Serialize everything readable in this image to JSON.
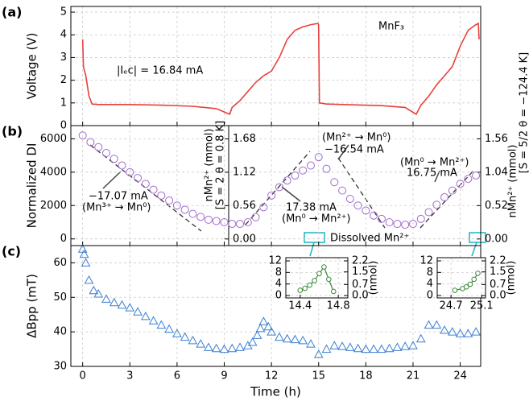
{
  "chart_data": [
    {
      "type": "line",
      "panel_label": "(a)",
      "y_label": "Voltage (V)",
      "annotations": [
        "MnF₃",
        "|Iₑc| = 16.84 mA"
      ],
      "color": "#e8413c",
      "grid": true,
      "xlim": [
        -0.75,
        25.3
      ],
      "ylim": [
        0,
        5.25
      ],
      "yticks": [
        0,
        1,
        2,
        3,
        4,
        5
      ],
      "x": [
        0,
        0.05,
        0.2,
        0.4,
        0.6,
        1,
        3,
        5,
        7,
        8.5,
        9.35,
        9.5,
        10,
        10.5,
        11,
        11.5,
        12,
        12.5,
        13,
        13.5,
        14,
        14.5,
        14.95,
        15.0,
        15.05,
        15.5,
        17,
        19,
        20.5,
        21.2,
        21.5,
        22,
        22.5,
        23,
        23.5,
        24,
        24.5,
        25,
        25.15,
        25.2
      ],
      "values": [
        3.8,
        2.6,
        2.2,
        1.3,
        0.95,
        0.93,
        0.93,
        0.9,
        0.85,
        0.75,
        0.5,
        0.8,
        1.1,
        1.5,
        1.9,
        2.2,
        2.4,
        3.0,
        3.8,
        4.2,
        4.35,
        4.45,
        4.5,
        4.45,
        1.0,
        0.95,
        0.92,
        0.88,
        0.8,
        0.5,
        0.9,
        1.3,
        1.8,
        2.2,
        2.6,
        3.5,
        4.2,
        4.45,
        4.5,
        3.8
      ]
    },
    {
      "type": "scatter",
      "marker": "circle",
      "panel_label": "(b)",
      "y_label": "Normalized DI",
      "y2_label": [
        "nMn²⁺ (mmol)",
        "[S = 2 θ = 0.8 K]"
      ],
      "y3_label": [
        "nMn²⁺ (mmol)",
        "[S = 5/2 θ = −124.4 K]"
      ],
      "annotations": [
        "−17.07 mA",
        "(Mn³⁺ → Mn⁰)",
        "17.38 mA",
        "(Mn⁰ → Mn²⁺)",
        "(Mn²⁺ → Mn⁰)",
        "−16.54 mA",
        "(Mn⁰ → Mn²⁺)",
        "16.75 mA"
      ],
      "color": "#a06ccc",
      "grid": true,
      "xlim": [
        -0.75,
        25.3
      ],
      "ylim": [
        -400,
        6790
      ],
      "yticks": [
        0,
        2000,
        4000,
        6000
      ],
      "y2lim": [
        -0.111,
        1.903
      ],
      "y2ticks": [
        {
          "value": 0,
          "label": "0.00"
        },
        0.56,
        1.12,
        1.68
      ],
      "y3lim": [
        -0.103,
        1.766
      ],
      "y3ticks": [
        {
          "value": 0,
          "label": "0.00"
        },
        0.52,
        1.04,
        1.56
      ],
      "x": [
        0,
        0.5,
        1,
        1.5,
        2,
        2.5,
        3,
        3.5,
        4,
        4.5,
        5,
        5.5,
        6,
        6.5,
        7,
        7.5,
        8,
        8.5,
        9,
        9.5,
        10,
        10.5,
        11,
        11.5,
        12,
        12.5,
        13,
        13.5,
        14,
        14.5,
        15,
        15.5,
        16,
        16.5,
        17,
        17.5,
        18,
        18.5,
        19,
        19.5,
        20,
        20.5,
        21,
        21.5,
        22,
        22.5,
        23,
        23.5,
        24,
        24.5,
        25
      ],
      "values": [
        6200,
        5800,
        5500,
        5150,
        4800,
        4400,
        4000,
        3650,
        3300,
        2950,
        2600,
        2300,
        2000,
        1750,
        1500,
        1320,
        1150,
        1070,
        1000,
        900,
        900,
        1000,
        1300,
        1900,
        2600,
        3100,
        3500,
        3800,
        4100,
        4400,
        4900,
        4200,
        3400,
        2900,
        2400,
        2000,
        1700,
        1400,
        1200,
        1000,
        900,
        850,
        900,
        1200,
        1600,
        2050,
        2500,
        2900,
        3300,
        3600,
        3800
      ]
    },
    {
      "type": "scatter",
      "marker": "triangle",
      "panel_label": "(c)",
      "y_label": "ΔBpp (mT)",
      "x_label": "Time (h)",
      "annotations": [
        "Dissolved Mn²⁺"
      ],
      "color": "#3c7fd0",
      "grid": true,
      "xlim": [
        -0.75,
        25.3
      ],
      "xticks": [
        0,
        3,
        6,
        9,
        12,
        15,
        18,
        21,
        24
      ],
      "ylim": [
        30,
        65
      ],
      "yticks": [
        30,
        40,
        50,
        60
      ],
      "x": [
        0,
        0.1,
        0.2,
        0.4,
        0.7,
        1,
        1.5,
        2,
        2.5,
        3,
        3.5,
        4,
        4.5,
        5,
        5.5,
        6,
        6.5,
        7,
        7.5,
        8,
        8.5,
        9,
        9.5,
        10,
        10.5,
        10.8,
        11.1,
        11.3,
        11.5,
        11.8,
        12,
        12.5,
        13,
        13.5,
        14,
        14.5,
        15,
        15.5,
        16,
        16.5,
        17,
        17.5,
        18,
        18.5,
        19,
        19.5,
        20,
        20.5,
        21,
        21.5,
        22,
        22.5,
        23,
        23.5,
        24,
        24.5,
        25
      ],
      "values": [
        64,
        62.5,
        60,
        55,
        52,
        51,
        49.5,
        48.5,
        47.8,
        47,
        45.8,
        44.5,
        43.2,
        42,
        40.8,
        39.5,
        38.5,
        37.5,
        36.5,
        35.5,
        35.2,
        35,
        35.2,
        35.5,
        36,
        37,
        39,
        41,
        43,
        41.5,
        40,
        38.5,
        38,
        37.8,
        37.5,
        36.5,
        33.5,
        35,
        36,
        35.8,
        35.5,
        35.2,
        35,
        35,
        35,
        35.2,
        35.5,
        35.8,
        36,
        38,
        42,
        42,
        40.5,
        40,
        39.5,
        39.5,
        40
      ]
    },
    {
      "type": "line",
      "marker": "circle",
      "color": "#3a8a3a",
      "grid": true,
      "xlim": [
        14.25,
        14.9
      ],
      "xticks": [
        14.4,
        14.8
      ],
      "ylim": [
        -0.84,
        13.12
      ],
      "yticks": [
        0,
        4,
        8,
        12
      ],
      "y2lim": [
        -0.153,
        2.405
      ],
      "y2ticks": [
        {
          "value": 0,
          "label": "0.0"
        },
        0.7,
        1.5,
        2.2
      ],
      "y2_label": "(nmol)",
      "x": [
        14.4,
        14.45,
        14.5,
        14.55,
        14.6,
        14.65,
        14.7,
        14.75
      ],
      "values": [
        1.8,
        2.5,
        3.6,
        5.2,
        7.6,
        9.9,
        5.6,
        1.4
      ]
    },
    {
      "type": "line",
      "marker": "circle",
      "color": "#3a8a3a",
      "grid": true,
      "xlim": [
        24.52,
        25.15
      ],
      "xticks": [
        24.7,
        25.1
      ],
      "ylim": [
        -0.84,
        13.12
      ],
      "yticks": [
        0,
        4,
        8,
        12
      ],
      "y2lim": [
        -0.153,
        2.405
      ],
      "y2ticks": [
        {
          "value": 0,
          "label": "0.0"
        },
        0.7,
        1.5,
        2.2
      ],
      "y2_label": "(nmol)",
      "x": [
        24.75,
        24.85,
        24.9,
        24.95,
        25.0,
        25.05
      ],
      "values": [
        1.8,
        2.4,
        3.0,
        3.9,
        5.6,
        7.7
      ]
    }
  ]
}
